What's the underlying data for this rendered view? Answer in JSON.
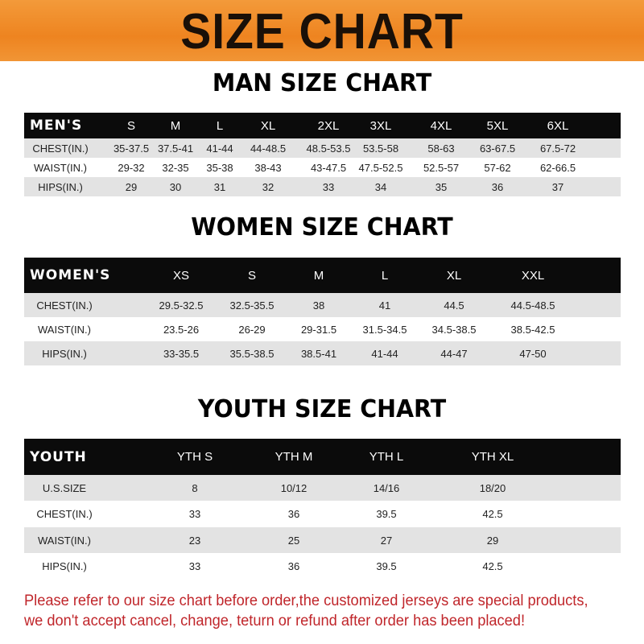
{
  "banner_title": "SIZE CHART",
  "colors": {
    "banner": "#ee8420",
    "header_row": "#0b0b0b",
    "note": "#c0262b"
  },
  "men": {
    "title": "MAN SIZE CHART",
    "header": [
      "MEN'S",
      "S",
      "M",
      "L",
      "XL",
      "2XL",
      "3XL",
      "4XL",
      "5XL",
      "6XL"
    ],
    "rows": [
      [
        "CHEST(IN.)",
        "35-37.5",
        "37.5-41",
        "41-44",
        "44-48.5",
        "48.5-53.5",
        "53.5-58",
        "58-63",
        "63-67.5",
        "67.5-72"
      ],
      [
        "WAIST(IN.)",
        "29-32",
        "32-35",
        "35-38",
        "38-43",
        "43-47.5",
        "47.5-52.5",
        "52.5-57",
        "57-62",
        "62-66.5"
      ],
      [
        "HIPS(IN.)",
        "29",
        "30",
        "31",
        "32",
        "33",
        "34",
        "35",
        "36",
        "37"
      ]
    ]
  },
  "women": {
    "title": "WOMEN SIZE CHART",
    "header": [
      "WOMEN'S",
      "XS",
      "S",
      "M",
      "L",
      "XL",
      "XXL"
    ],
    "rows": [
      [
        "CHEST(IN.)",
        "29.5-32.5",
        "32.5-35.5",
        "38",
        "41",
        "44.5",
        "44.5-48.5"
      ],
      [
        "WAIST(IN.)",
        "23.5-26",
        "26-29",
        "29-31.5",
        "31.5-34.5",
        "34.5-38.5",
        "38.5-42.5"
      ],
      [
        "HIPS(IN.)",
        "33-35.5",
        "35.5-38.5",
        "38.5-41",
        "41-44",
        "44-47",
        "47-50"
      ]
    ]
  },
  "youth": {
    "title": "YOUTH SIZE CHART",
    "header": [
      "YOUTH",
      "YTH S",
      "YTH M",
      "YTH L",
      "YTH XL"
    ],
    "rows": [
      [
        "U.S.SIZE",
        "8",
        "10/12",
        "14/16",
        "18/20"
      ],
      [
        "CHEST(IN.)",
        "33",
        "36",
        "39.5",
        "42.5"
      ],
      [
        "WAIST(IN.)",
        "23",
        "25",
        "27",
        "29"
      ],
      [
        "HIPS(IN.)",
        "33",
        "36",
        "39.5",
        "42.5"
      ]
    ]
  },
  "note_lines": [
    "Please refer to our size chart before order,the customized jerseys are special products,",
    "we don't accept cancel, change, teturn or refund after order has been placed!"
  ]
}
